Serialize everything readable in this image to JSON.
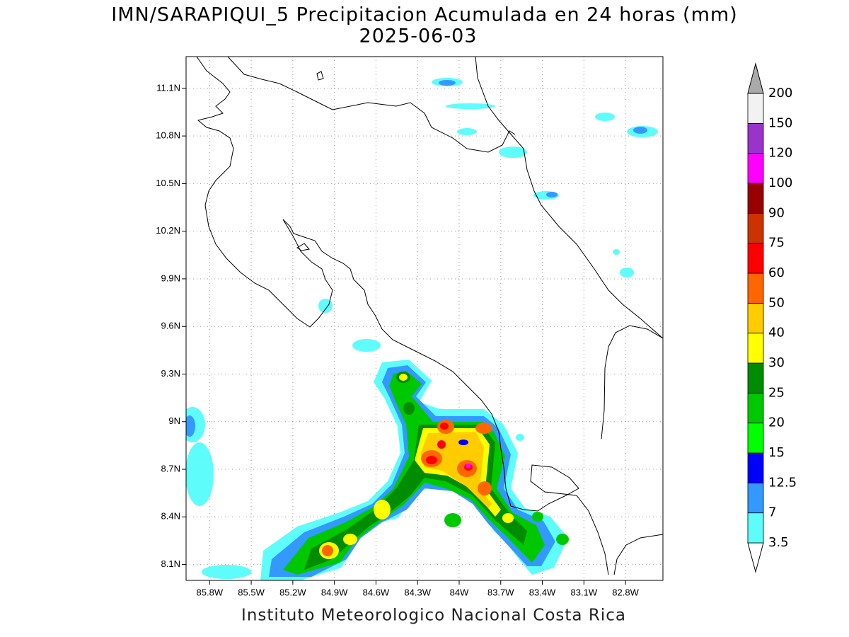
{
  "title": "IMN/SARAPIQUI_5 Precipitacion Acumulada en 24 horas (mm)",
  "subtitle": "2025-06-03",
  "footer": "Instituto Meteorologico Nacional Costa Rica",
  "map": {
    "xlim": [
      -85.97,
      -82.53
    ],
    "ylim": [
      8.0,
      11.3
    ],
    "grid": true,
    "xticks": [
      {
        "value": -85.8,
        "label": "85.8W"
      },
      {
        "value": -85.5,
        "label": "85.5W"
      },
      {
        "value": -85.2,
        "label": "85.2W"
      },
      {
        "value": -84.9,
        "label": "84.9W"
      },
      {
        "value": -84.6,
        "label": "84.6W"
      },
      {
        "value": -84.3,
        "label": "84.3W"
      },
      {
        "value": -84.0,
        "label": "84W"
      },
      {
        "value": -83.7,
        "label": "83.7W"
      },
      {
        "value": -83.4,
        "label": "83.4W"
      },
      {
        "value": -83.1,
        "label": "83.1W"
      },
      {
        "value": -82.8,
        "label": "82.8W"
      }
    ],
    "yticks": [
      {
        "value": 8.1,
        "label": "8.1N"
      },
      {
        "value": 8.4,
        "label": "8.4N"
      },
      {
        "value": 8.7,
        "label": "8.7N"
      },
      {
        "value": 9.0,
        "label": "9N"
      },
      {
        "value": 9.3,
        "label": "9.3N"
      },
      {
        "value": 9.6,
        "label": "9.6N"
      },
      {
        "value": 9.9,
        "label": "9.9N"
      },
      {
        "value": 10.2,
        "label": "10.2N"
      },
      {
        "value": 10.5,
        "label": "10.5N"
      },
      {
        "value": 10.8,
        "label": "10.8N"
      },
      {
        "value": 11.1,
        "label": "11.1N"
      }
    ]
  },
  "colorbar": {
    "levels": [
      3.5,
      7,
      12.5,
      15,
      20,
      25,
      30,
      40,
      50,
      60,
      75,
      90,
      100,
      120,
      150,
      200
    ],
    "colors": [
      "#ffffff",
      "#5ffcfc",
      "#3399ff",
      "#0000ff",
      "#00ff00",
      "#00c800",
      "#008c00",
      "#ffff00",
      "#ffcc00",
      "#ff6600",
      "#ff0000",
      "#cc3300",
      "#990000",
      "#ff00ff",
      "#9933cc",
      "#f2f2f2",
      "#aaaaaa"
    ]
  }
}
